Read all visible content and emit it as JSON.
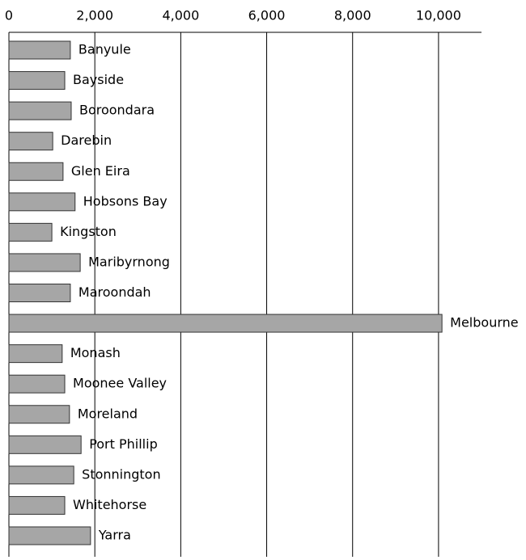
{
  "chart_data": {
    "type": "hbar",
    "categories": [
      "Banyule",
      "Bayside",
      "Boroondara",
      "Darebin",
      "Glen Eira",
      "Hobsons Bay",
      "Kingston",
      "Maribyrnong",
      "Maroondah",
      "Melbourne",
      "Monash",
      "Moonee Valley",
      "Moreland",
      "Port Phillip",
      "Stonnington",
      "Whitehorse",
      "Yarra"
    ],
    "values": [
      1430,
      1300,
      1450,
      1020,
      1260,
      1540,
      1000,
      1660,
      1430,
      10080,
      1240,
      1300,
      1410,
      1680,
      1510,
      1300,
      1900
    ],
    "color": "#a6a6a6",
    "xlim": [
      0,
      11000
    ],
    "xticks": [
      0,
      {
        "value": 2000,
        "label": "2,000"
      },
      {
        "value": 4000,
        "label": "4,000"
      },
      {
        "value": 6000,
        "label": "6,000"
      },
      {
        "value": 8000,
        "label": "8,000"
      },
      {
        "value": 10000,
        "label": "10,000"
      }
    ],
    "grid": true
  }
}
